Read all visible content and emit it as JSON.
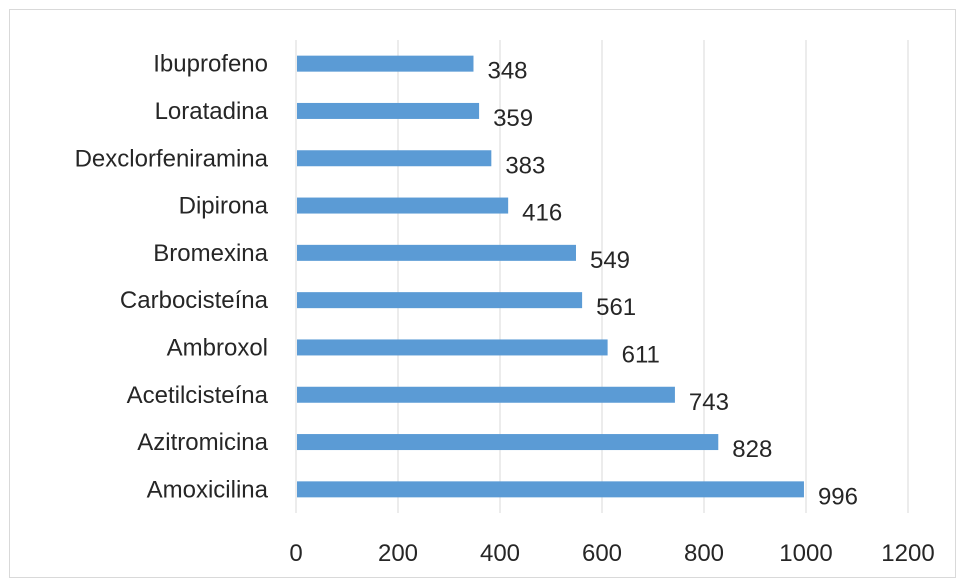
{
  "chart_data": {
    "type": "bar",
    "orientation": "horizontal",
    "title": "",
    "xlabel": "",
    "ylabel": "",
    "categories": [
      "Ibuprofeno",
      "Loratadina",
      "Dexclorfeniramina",
      "Dipirona",
      "Bromexina",
      "Carbocisteína",
      "Ambroxol",
      "Acetilcisteína",
      "Azitromicina",
      "Amoxicilina"
    ],
    "values": [
      348,
      359,
      383,
      416,
      549,
      561,
      611,
      743,
      828,
      996
    ],
    "xlim": [
      0,
      1200
    ],
    "xticks": [
      0,
      200,
      400,
      600,
      800,
      1000,
      1200
    ],
    "grid": "vertical",
    "data_labels": true,
    "legend": "none",
    "colors": {
      "bar": "#5b9bd5",
      "grid": "#d9d9d9",
      "text": "#262626"
    }
  }
}
